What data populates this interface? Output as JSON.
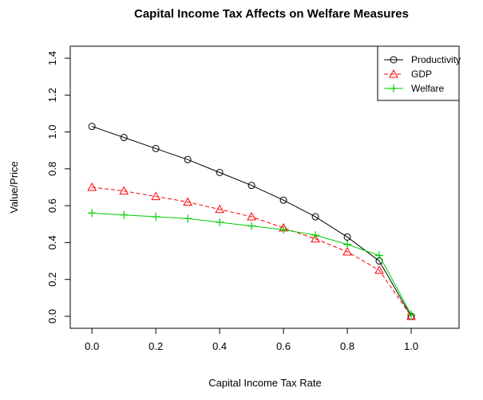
{
  "chart_data": {
    "type": "line",
    "title": "Capital Income Tax Affects on Welfare Measures",
    "x_label": "Capital Income Tax Rate",
    "y_label": "Value/Price",
    "x": [
      0.0,
      0.1,
      0.2,
      0.3,
      0.4,
      0.5,
      0.6,
      0.7,
      0.8,
      0.9,
      1.0
    ],
    "series": [
      {
        "name": "Productivity",
        "color": "#000000",
        "marker": "circle",
        "dash": "solid",
        "values": [
          1.03,
          0.97,
          0.91,
          0.85,
          0.78,
          0.71,
          0.63,
          0.54,
          0.43,
          0.3,
          0.0
        ]
      },
      {
        "name": "GDP",
        "color": "#ff0000",
        "marker": "triangle",
        "dash": "dashed",
        "values": [
          0.7,
          0.68,
          0.65,
          0.62,
          0.58,
          0.54,
          0.48,
          0.42,
          0.35,
          0.25,
          0.0
        ]
      },
      {
        "name": "Welfare",
        "color": "#00cd00",
        "marker": "plus",
        "dash": "solid",
        "values": [
          0.56,
          0.55,
          0.54,
          0.53,
          0.51,
          0.49,
          0.47,
          0.44,
          0.39,
          0.33,
          0.01
        ]
      }
    ],
    "xlim": [
      -0.068,
      1.15
    ],
    "ylim": [
      -0.065,
      1.465
    ],
    "xticks": [
      {
        "value": 0,
        "label": "0.0"
      },
      0.2,
      0.4,
      0.6,
      0.8,
      {
        "value": 1,
        "label": "1.0"
      }
    ],
    "yticks": [
      {
        "value": 0,
        "label": "0.0"
      },
      0.2,
      0.4,
      0.6,
      0.8,
      {
        "value": 1,
        "label": "1.0"
      },
      1.2,
      1.4
    ],
    "legend": "topright"
  }
}
